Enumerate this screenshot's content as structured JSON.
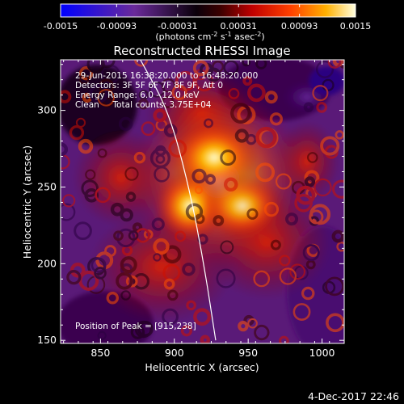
{
  "colorbar": {
    "tick_labels": [
      "-0.0015",
      "-0.00093",
      "-0.00031",
      "0.00031",
      "0.00093",
      "0.0015"
    ],
    "tick_values": [
      -0.0015,
      -0.00093,
      -0.00031,
      0.00031,
      0.00093,
      0.0015
    ],
    "range": [
      -0.0015,
      0.0015
    ],
    "unit_parts": [
      "(photons cm",
      "-2",
      " s",
      "-1",
      " asec",
      "-2",
      ")"
    ]
  },
  "chart_data": {
    "type": "heatmap",
    "title": "Reconstructed RHESSI Image",
    "xlabel": "Heliocentric X (arcsec)",
    "ylabel": "Heliocentric Y (arcsec)",
    "xlim": [
      823,
      1015
    ],
    "ylim": [
      148,
      333
    ],
    "xticks": [
      850,
      900,
      950,
      1000
    ],
    "yticks": [
      150,
      200,
      250,
      300
    ],
    "peak": [
      915,
      238
    ],
    "limb_curve": [
      [
        877,
        333
      ],
      [
        896,
        300
      ],
      [
        910,
        250
      ],
      [
        920,
        200
      ],
      [
        928,
        150
      ]
    ],
    "annotations": [
      "29-Jun-2015 16:38:20.000 to 16:48:20.000",
      "Detectors: 3F 5F 6F 7F 8F 9F, Att 0",
      "Energy Range: 6.0 - 12.0 keV",
      "Clean     Total counts: 3.75E+04",
      "Position of Peak = [915,238]"
    ]
  },
  "footer": {
    "date": "4-Dec-2017 22:46"
  },
  "colors": {
    "background": "#000000",
    "limb": "#ffffff",
    "scale": [
      "#0000ff",
      "#3a0080",
      "#6a2a9a",
      "#000000",
      "#800000",
      "#e00000",
      "#ff6000",
      "#ffc000",
      "#ffffff"
    ]
  }
}
